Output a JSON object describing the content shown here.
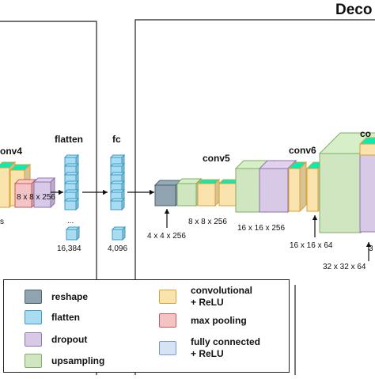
{
  "decoder_title": "Deco",
  "layer_labels": {
    "conv4": "onv4",
    "flatten": "flatten",
    "fc": "fc",
    "conv5": "conv5",
    "conv6": "conv6",
    "conv7_partial": "co"
  },
  "dims": {
    "left_partial": "s",
    "pool4": "8 x 8 x 256",
    "flatten_size": "16,384",
    "fc_size": "4,096",
    "dots": "...",
    "reshape": "4 x 4 x 256",
    "conv5_in": "8 x 8 x 256",
    "conv5_out": "16 x 16 x 256",
    "conv6_in": "16 x 16 x 64",
    "conv6_out": "32 x 32 x 64",
    "right_partial": "3"
  },
  "legend": {
    "reshape": "reshape",
    "flatten": "flatten",
    "dropout": "dropout",
    "upsampling": "upsampling",
    "conv_line1": "convolutional",
    "conv_line2": "+ ReLU",
    "maxpool": "max pooling",
    "fc_line1": "fully connected",
    "fc_line2": "+ ReLU"
  },
  "colors": {
    "reshape_fill": "#8fa3b0",
    "reshape_stroke": "#4d6270",
    "flatten_fill": "#a9dcf0",
    "flatten_stroke": "#3c9bc4",
    "dropout_fill": "#d8c9e6",
    "dropout_stroke": "#8e74ad",
    "upsampling_fill": "#cfe6c0",
    "upsampling_stroke": "#7fae66",
    "conv_fill": "#fbe3ad",
    "conv_stroke": "#d9a23a",
    "maxpool_fill": "#f4c3c3",
    "maxpool_stroke": "#c75a5a",
    "fc_fill": "#d6e3f7",
    "fc_stroke": "#7d9ad0"
  }
}
